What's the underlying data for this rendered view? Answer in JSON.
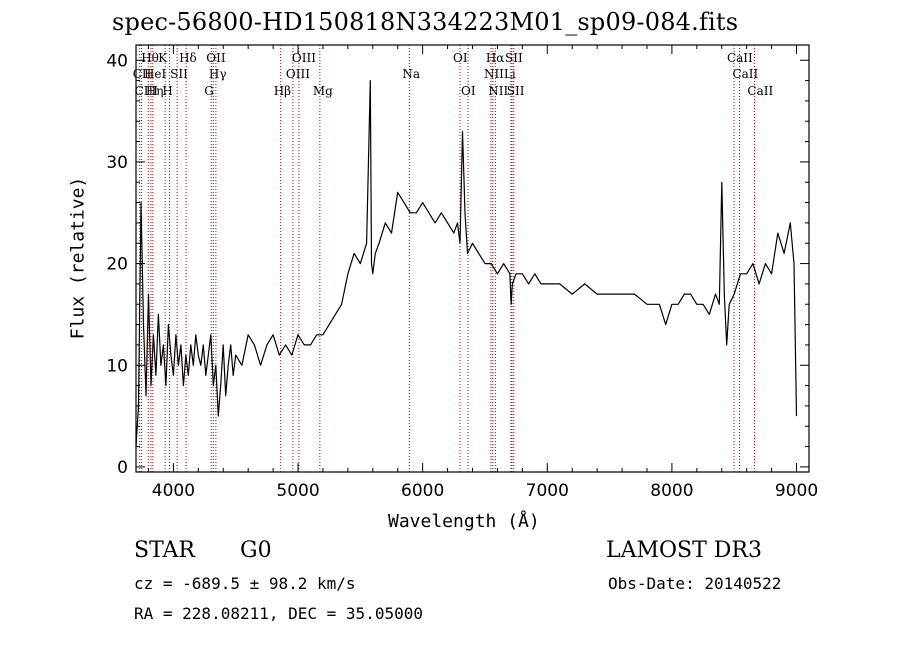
{
  "colors": {
    "line": "#000000",
    "marker": "#c00000",
    "background": "#ffffff"
  },
  "chart_data": {
    "type": "line",
    "title": "spec-56800-HD150818N334223M01_sp09-084.fits",
    "xlabel": "Wavelength (Å)",
    "ylabel": "Flux (relative)",
    "xlim": [
      3700,
      9100
    ],
    "ylim": [
      -0.5,
      41.5
    ],
    "xticks": [
      4000,
      5000,
      6000,
      7000,
      8000,
      9000
    ],
    "yticks": [
      0,
      10,
      20,
      30,
      40
    ],
    "grid": false,
    "series": [
      {
        "x": [
          3700,
          3720,
          3740,
          3760,
          3780,
          3800,
          3820,
          3840,
          3860,
          3880,
          3900,
          3920,
          3940,
          3960,
          3980,
          4000,
          4020,
          4040,
          4060,
          4080,
          4100,
          4120,
          4140,
          4160,
          4180,
          4200,
          4220,
          4240,
          4260,
          4280,
          4300,
          4320,
          4340,
          4360,
          4380,
          4400,
          4420,
          4440,
          4460,
          4480,
          4500,
          4550,
          4600,
          4650,
          4700,
          4750,
          4800,
          4850,
          4900,
          4950,
          5000,
          5050,
          5100,
          5150,
          5200,
          5250,
          5300,
          5350,
          5400,
          5450,
          5500,
          5550,
          5580,
          5590,
          5600,
          5620,
          5650,
          5700,
          5750,
          5800,
          5850,
          5900,
          5950,
          6000,
          6050,
          6100,
          6150,
          6200,
          6250,
          6280,
          6300,
          6320,
          6340,
          6360,
          6400,
          6450,
          6500,
          6550,
          6600,
          6650,
          6700,
          6710,
          6720,
          6750,
          6800,
          6850,
          6900,
          6950,
          7000,
          7100,
          7200,
          7300,
          7400,
          7500,
          7600,
          7700,
          7800,
          7900,
          7950,
          8000,
          8050,
          8100,
          8150,
          8200,
          8250,
          8300,
          8350,
          8380,
          8400,
          8420,
          8440,
          8460,
          8500,
          8550,
          8600,
          8650,
          8700,
          8750,
          8800,
          8850,
          8900,
          8950,
          8980,
          9000
        ],
        "values": [
          2,
          6,
          26,
          14,
          7,
          17,
          8,
          13,
          9,
          15,
          10,
          12,
          8,
          14,
          11,
          9,
          13,
          10,
          12,
          8,
          11,
          9,
          12,
          10,
          13,
          11,
          10,
          12,
          9,
          11,
          13,
          8,
          10,
          5,
          8,
          12,
          7,
          10,
          12,
          9,
          11,
          10,
          13,
          12,
          10,
          12,
          13,
          11,
          12,
          11,
          13,
          12,
          12,
          13,
          13,
          14,
          15,
          16,
          19,
          21,
          20,
          22,
          38,
          20,
          19,
          21,
          22,
          24,
          23,
          27,
          26,
          25,
          25,
          26,
          25,
          24,
          25,
          24,
          23,
          24,
          22,
          33,
          25,
          21,
          22,
          21,
          20,
          20,
          19,
          20,
          19,
          16,
          18,
          19,
          19,
          18,
          19,
          18,
          18,
          18,
          17,
          18,
          17,
          17,
          17,
          17,
          16,
          16,
          14,
          16,
          16,
          17,
          17,
          16,
          16,
          15,
          17,
          16,
          28,
          17,
          12,
          16,
          17,
          19,
          19,
          20,
          18,
          20,
          19,
          23,
          21,
          24,
          20,
          5
        ]
      }
    ],
    "line_markers": [
      {
        "label": "CII",
        "x": 3730,
        "row": 1
      },
      {
        "label": "CIII",
        "x": 3745,
        "row": 2
      },
      {
        "label": "Hθ",
        "x": 3798,
        "row": 0
      },
      {
        "label": "HeI",
        "x": 3820,
        "row": 1
      },
      {
        "label": "Hη",
        "x": 3835,
        "row": 2
      },
      {
        "label": "K",
        "x": 3934,
        "row": 0
      },
      {
        "label": "H",
        "x": 3968,
        "row": 2
      },
      {
        "label": "SII",
        "x": 4030,
        "row": 1
      },
      {
        "label": "Hδ",
        "x": 4102,
        "row": 0
      },
      {
        "label": "OII",
        "x": 4320,
        "row": 0
      },
      {
        "label": "Hγ",
        "x": 4341,
        "row": 1
      },
      {
        "label": "G",
        "x": 4304,
        "row": 2
      },
      {
        "label": "Hβ",
        "x": 4861,
        "row": 2
      },
      {
        "label": "OIII",
        "x": 4959,
        "row": 1
      },
      {
        "label": "OIII",
        "x": 5007,
        "row": 0
      },
      {
        "label": "Mg",
        "x": 5175,
        "row": 2
      },
      {
        "label": "Na",
        "x": 5893,
        "row": 1
      },
      {
        "label": "OI",
        "x": 6300,
        "row": 0
      },
      {
        "label": "OI",
        "x": 6364,
        "row": 2
      },
      {
        "label": "Hα",
        "x": 6563,
        "row": 0
      },
      {
        "label": "NII",
        "x": 6548,
        "row": 1
      },
      {
        "label": "NII",
        "x": 6583,
        "row": 2
      },
      {
        "label": "SII",
        "x": 6717,
        "row": 0
      },
      {
        "label": "Li",
        "x": 6708,
        "row": 1
      },
      {
        "label": "SII",
        "x": 6731,
        "row": 2
      },
      {
        "label": "CaII",
        "x": 8498,
        "row": 0
      },
      {
        "label": "CaII",
        "x": 8542,
        "row": 1
      },
      {
        "label": "CaII",
        "x": 8662,
        "row": 2
      }
    ]
  },
  "info": {
    "object_type": "STAR",
    "subclass": "G0",
    "survey": "LAMOST DR3",
    "cz": "cz = -689.5 ± 98.2 km/s",
    "obs_date": "Obs-Date: 20140522",
    "coords": "RA = 228.08211, DEC =  35.05000"
  }
}
